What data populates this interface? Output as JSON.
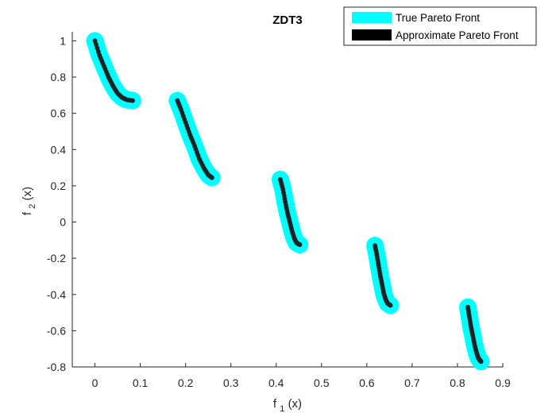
{
  "chart_data": {
    "type": "line",
    "title": "ZDT3",
    "xlabel_main": "f",
    "xlabel_sub": "1",
    "xlabel_tail": "(x)",
    "ylabel_main": "f",
    "ylabel_sub": "2",
    "ylabel_tail": "(x)",
    "xlim": [
      -0.05,
      0.9
    ],
    "ylim": [
      -0.8,
      1.05
    ],
    "xticks": [
      0,
      0.1,
      0.2,
      0.3,
      0.4,
      0.5,
      0.6,
      0.7,
      0.8,
      0.9
    ],
    "xtick_labels": [
      "0",
      "0.1",
      "0.2",
      "0.3",
      "0.4",
      "0.5",
      "0.6",
      "0.7",
      "0.8",
      "0.9"
    ],
    "yticks": [
      1,
      0.8,
      0.6,
      0.4,
      0.2,
      0,
      -0.2,
      -0.4,
      -0.6,
      -0.8
    ],
    "ytick_labels": [
      "1",
      "0.8",
      "0.6",
      "0.4",
      "0.2",
      "0",
      "-0.2",
      "-0.4",
      "-0.6",
      "-0.8"
    ],
    "legend_position": "top-right",
    "grid": false,
    "series": [
      {
        "name": "True Pareto Front",
        "color": "#00ffff",
        "style": "thick-line",
        "segments": [
          {
            "x": [
              0.0,
              0.01,
              0.02,
              0.03,
              0.04,
              0.05,
              0.06,
              0.07,
              0.083
            ],
            "y": [
              1.0,
              0.92,
              0.86,
              0.8,
              0.75,
              0.71,
              0.687,
              0.675,
              0.67
            ]
          },
          {
            "x": [
              0.182,
              0.19,
              0.2,
              0.21,
              0.22,
              0.23,
              0.24,
              0.25,
              0.258
            ],
            "y": [
              0.67,
              0.62,
              0.55,
              0.48,
              0.42,
              0.35,
              0.3,
              0.26,
              0.245
            ]
          },
          {
            "x": [
              0.409,
              0.415,
              0.42,
              0.425,
              0.43,
              0.435,
              0.44,
              0.445,
              0.452
            ],
            "y": [
              0.235,
              0.18,
              0.11,
              0.05,
              0.0,
              -0.05,
              -0.09,
              -0.115,
              -0.125
            ]
          },
          {
            "x": [
              0.618,
              0.622,
              0.626,
              0.63,
              0.634,
              0.638,
              0.642,
              0.646,
              0.652
            ],
            "y": [
              -0.13,
              -0.18,
              -0.24,
              -0.3,
              -0.35,
              -0.4,
              -0.43,
              -0.45,
              -0.46
            ]
          },
          {
            "x": [
              0.823,
              0.826,
              0.83,
              0.834,
              0.838,
              0.842,
              0.846,
              0.85,
              0.852
            ],
            "y": [
              -0.47,
              -0.52,
              -0.58,
              -0.63,
              -0.68,
              -0.72,
              -0.75,
              -0.765,
              -0.77
            ]
          }
        ]
      },
      {
        "name": "Approximate Pareto Front",
        "color": "#000000",
        "style": "dots",
        "segments": [
          {
            "x": [
              0.0,
              0.01,
              0.02,
              0.03,
              0.04,
              0.05,
              0.06,
              0.07,
              0.083
            ],
            "y": [
              1.0,
              0.92,
              0.86,
              0.8,
              0.75,
              0.71,
              0.687,
              0.675,
              0.67
            ]
          },
          {
            "x": [
              0.182,
              0.19,
              0.2,
              0.21,
              0.22,
              0.23,
              0.24,
              0.25,
              0.258
            ],
            "y": [
              0.67,
              0.62,
              0.55,
              0.48,
              0.42,
              0.35,
              0.3,
              0.26,
              0.245
            ]
          },
          {
            "x": [
              0.409,
              0.415,
              0.42,
              0.425,
              0.43,
              0.435,
              0.44,
              0.445,
              0.452
            ],
            "y": [
              0.235,
              0.18,
              0.11,
              0.05,
              0.0,
              -0.05,
              -0.09,
              -0.115,
              -0.125
            ]
          },
          {
            "x": [
              0.618,
              0.622,
              0.626,
              0.63,
              0.634,
              0.638,
              0.642,
              0.646,
              0.652
            ],
            "y": [
              -0.13,
              -0.18,
              -0.24,
              -0.3,
              -0.35,
              -0.4,
              -0.43,
              -0.45,
              -0.46
            ]
          },
          {
            "x": [
              0.823,
              0.826,
              0.83,
              0.834,
              0.838,
              0.842,
              0.846,
              0.85,
              0.852
            ],
            "y": [
              -0.47,
              -0.52,
              -0.58,
              -0.63,
              -0.68,
              -0.72,
              -0.75,
              -0.765,
              -0.77
            ]
          }
        ]
      }
    ]
  }
}
